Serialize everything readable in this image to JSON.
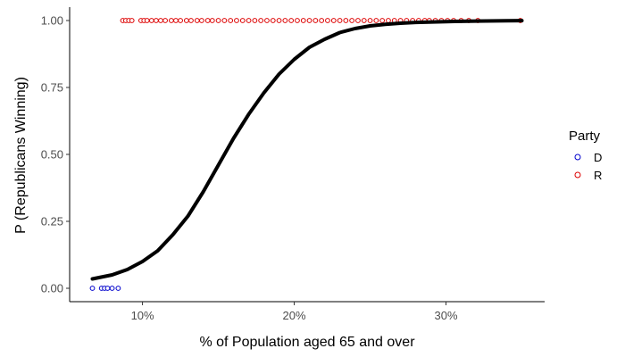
{
  "chart_data": {
    "type": "scatter",
    "title": "",
    "xlabel": "% of Population aged 65 and over",
    "ylabel": "P (Republicans Winning)",
    "xlim": [
      5.2,
      36.5
    ],
    "ylim": [
      -0.05,
      1.05
    ],
    "x_ticks": [
      10,
      20,
      30
    ],
    "x_tick_labels": [
      "10%",
      "20%",
      "30%"
    ],
    "y_ticks": [
      0.0,
      0.25,
      0.5,
      0.75,
      1.0
    ],
    "y_tick_labels": [
      "0.00",
      "0.25",
      "0.50",
      "0.75",
      "1.00"
    ],
    "grid": false,
    "legend": {
      "title": "Party",
      "placement": "right",
      "entries": [
        {
          "label": "D",
          "color": "#0000cc"
        },
        {
          "label": "R",
          "color": "#dd0000"
        }
      ]
    },
    "series": [
      {
        "name": "D",
        "color": "#0000cc",
        "points": [
          {
            "x": 6.7,
            "y": 0
          },
          {
            "x": 7.3,
            "y": 0
          },
          {
            "x": 7.5,
            "y": 0
          },
          {
            "x": 7.7,
            "y": 0
          },
          {
            "x": 8.0,
            "y": 0
          },
          {
            "x": 8.4,
            "y": 0
          }
        ]
      },
      {
        "name": "R",
        "color": "#dd0000",
        "points": [
          {
            "x": 8.7,
            "y": 1
          },
          {
            "x": 8.9,
            "y": 1
          },
          {
            "x": 9.1,
            "y": 1
          },
          {
            "x": 9.3,
            "y": 1
          },
          {
            "x": 9.9,
            "y": 1
          },
          {
            "x": 10.1,
            "y": 1
          },
          {
            "x": 10.3,
            "y": 1
          },
          {
            "x": 10.6,
            "y": 1
          },
          {
            "x": 10.9,
            "y": 1
          },
          {
            "x": 11.2,
            "y": 1
          },
          {
            "x": 11.5,
            "y": 1
          },
          {
            "x": 11.9,
            "y": 1
          },
          {
            "x": 12.2,
            "y": 1
          },
          {
            "x": 12.5,
            "y": 1
          },
          {
            "x": 12.9,
            "y": 1
          },
          {
            "x": 13.2,
            "y": 1
          },
          {
            "x": 13.6,
            "y": 1
          },
          {
            "x": 13.9,
            "y": 1
          },
          {
            "x": 14.3,
            "y": 1
          },
          {
            "x": 14.6,
            "y": 1
          },
          {
            "x": 15.0,
            "y": 1
          },
          {
            "x": 15.4,
            "y": 1
          },
          {
            "x": 15.8,
            "y": 1
          },
          {
            "x": 16.2,
            "y": 1
          },
          {
            "x": 16.6,
            "y": 1
          },
          {
            "x": 17.0,
            "y": 1
          },
          {
            "x": 17.4,
            "y": 1
          },
          {
            "x": 17.8,
            "y": 1
          },
          {
            "x": 18.2,
            "y": 1
          },
          {
            "x": 18.6,
            "y": 1
          },
          {
            "x": 19.0,
            "y": 1
          },
          {
            "x": 19.4,
            "y": 1
          },
          {
            "x": 19.8,
            "y": 1
          },
          {
            "x": 20.2,
            "y": 1
          },
          {
            "x": 20.6,
            "y": 1
          },
          {
            "x": 21.0,
            "y": 1
          },
          {
            "x": 21.4,
            "y": 1
          },
          {
            "x": 21.8,
            "y": 1
          },
          {
            "x": 22.2,
            "y": 1
          },
          {
            "x": 22.6,
            "y": 1
          },
          {
            "x": 23.0,
            "y": 1
          },
          {
            "x": 23.4,
            "y": 1
          },
          {
            "x": 23.8,
            "y": 1
          },
          {
            "x": 24.2,
            "y": 1
          },
          {
            "x": 24.6,
            "y": 1
          },
          {
            "x": 25.0,
            "y": 1
          },
          {
            "x": 25.4,
            "y": 1
          },
          {
            "x": 25.8,
            "y": 1
          },
          {
            "x": 26.2,
            "y": 1
          },
          {
            "x": 26.6,
            "y": 1
          },
          {
            "x": 27.0,
            "y": 1
          },
          {
            "x": 27.4,
            "y": 1
          },
          {
            "x": 27.8,
            "y": 1
          },
          {
            "x": 28.2,
            "y": 1
          },
          {
            "x": 28.6,
            "y": 1
          },
          {
            "x": 28.9,
            "y": 1
          },
          {
            "x": 29.3,
            "y": 1
          },
          {
            "x": 29.7,
            "y": 1
          },
          {
            "x": 30.1,
            "y": 1
          },
          {
            "x": 30.5,
            "y": 1
          },
          {
            "x": 31.0,
            "y": 1
          },
          {
            "x": 31.5,
            "y": 1
          },
          {
            "x": 32.1,
            "y": 1
          },
          {
            "x": 34.9,
            "y": 1
          }
        ]
      }
    ],
    "fit_curve": {
      "type": "line",
      "color": "#000000",
      "x": [
        6.7,
        8,
        9,
        10,
        11,
        12,
        13,
        14,
        15,
        16,
        17,
        18,
        19,
        20,
        21,
        22,
        23,
        24,
        25,
        26,
        27,
        28,
        30,
        32,
        34,
        35
      ],
      "y": [
        0.035,
        0.05,
        0.07,
        0.1,
        0.14,
        0.2,
        0.27,
        0.36,
        0.46,
        0.56,
        0.65,
        0.73,
        0.8,
        0.855,
        0.9,
        0.93,
        0.955,
        0.97,
        0.98,
        0.986,
        0.99,
        0.993,
        0.996,
        0.998,
        0.999,
        0.9995
      ]
    }
  }
}
